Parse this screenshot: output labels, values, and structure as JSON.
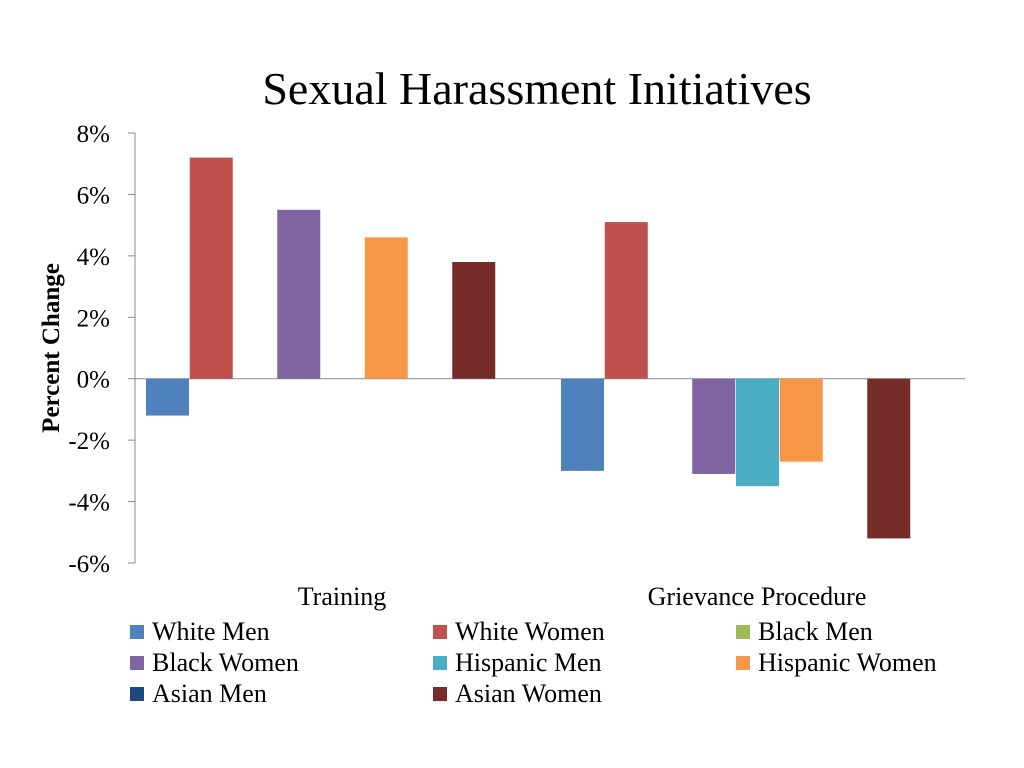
{
  "chart_data": {
    "type": "bar",
    "title": "Sexual Harassment Initiatives",
    "ylabel": "Percent Change",
    "xlabel": "",
    "ylim": [
      -6,
      8
    ],
    "yticks": [
      8,
      6,
      4,
      2,
      0,
      -2,
      -4,
      -6
    ],
    "ytick_labels": [
      "8%",
      "6%",
      "4%",
      "2%",
      "0%",
      "-2%",
      "-4%",
      "-6%"
    ],
    "categories": [
      "Training",
      "Grievance Procedure"
    ],
    "grid": false,
    "legend_position": "bottom",
    "series": [
      {
        "name": "White Men",
        "color": "#4F81BD",
        "values": [
          -1.2,
          -3.0
        ]
      },
      {
        "name": "White Women",
        "color": "#C0504D",
        "values": [
          7.2,
          5.1
        ]
      },
      {
        "name": "Black Men",
        "color": "#9BBB59",
        "values": [
          0,
          0
        ]
      },
      {
        "name": "Black Women",
        "color": "#8064A2",
        "values": [
          5.5,
          -3.1
        ]
      },
      {
        "name": "Hispanic Men",
        "color": "#4BACC6",
        "values": [
          0,
          -3.5
        ]
      },
      {
        "name": "Hispanic Women",
        "color": "#F79646",
        "values": [
          4.6,
          -2.7
        ]
      },
      {
        "name": "Asian Men",
        "color": "#1F497D",
        "values": [
          0,
          0
        ]
      },
      {
        "name": "Asian Women",
        "color": "#772C2A",
        "values": [
          3.8,
          -5.2
        ]
      }
    ]
  }
}
